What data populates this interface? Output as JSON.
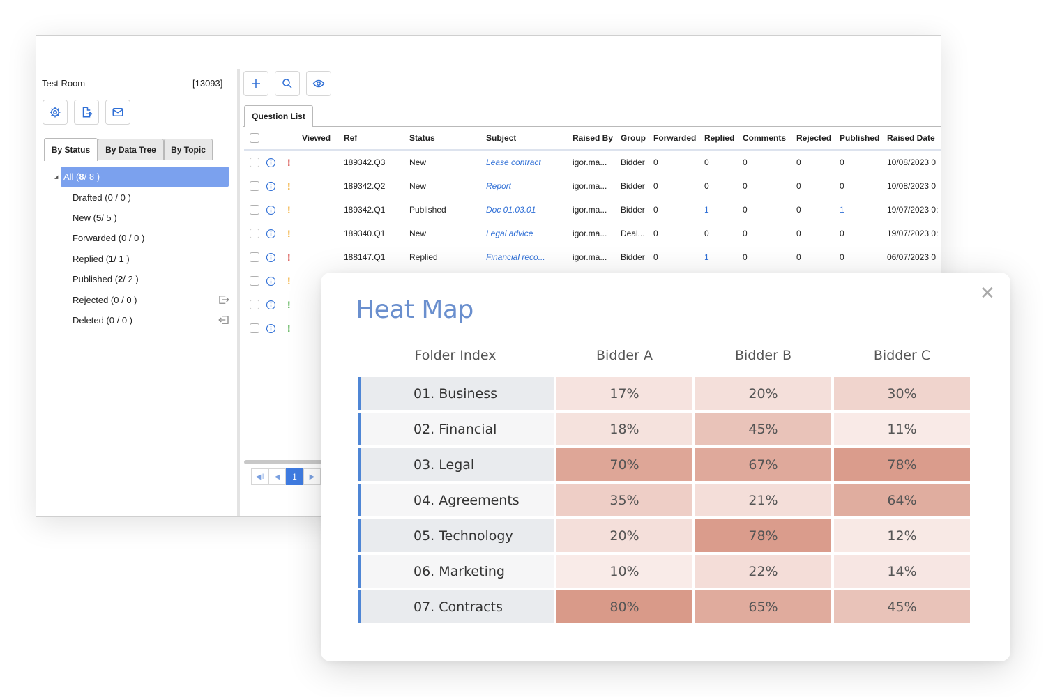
{
  "sidebar": {
    "room_title": "Test Room",
    "room_id": "[13093]",
    "buttons": [
      {
        "name": "settings",
        "icon": "gear-icon"
      },
      {
        "name": "export",
        "icon": "export-file-icon"
      },
      {
        "name": "mail",
        "icon": "envelope-icon"
      }
    ],
    "tabs": [
      "By Status",
      "By Data Tree",
      "By Topic"
    ],
    "active_tab": "By Status",
    "tree": [
      {
        "label": "All (",
        "bold": "8",
        "rest": " / 8 )",
        "selected": true
      },
      {
        "label": "Drafted (0 / 0 )",
        "bold": "",
        "rest": ""
      },
      {
        "label": "New (",
        "bold": "5",
        "rest": " / 5 )"
      },
      {
        "label": "Forwarded (0 / 0 )",
        "bold": "",
        "rest": ""
      },
      {
        "label": "Replied (",
        "bold": "1",
        "rest": " / 1 )"
      },
      {
        "label": "Published (",
        "bold": "2",
        "rest": " / 2 )"
      },
      {
        "label": "Rejected (0 / 0 )",
        "bold": "",
        "rest": "",
        "action": "move-out-icon"
      },
      {
        "label": "Deleted (0 / 0 )",
        "bold": "",
        "rest": "",
        "action": "move-in-icon"
      }
    ]
  },
  "toolbar": {
    "buttons": [
      {
        "name": "add",
        "icon": "plus-icon"
      },
      {
        "name": "search",
        "icon": "search-icon"
      },
      {
        "name": "view",
        "icon": "eye-icon"
      }
    ],
    "tab": "Question List"
  },
  "grid": {
    "columns": [
      "Viewed",
      "Ref",
      "Status",
      "Subject",
      "Raised By",
      "Group",
      "Forwarded",
      "Replied",
      "Comments",
      "Rejected",
      "Published",
      "Raised Date"
    ],
    "rows": [
      {
        "priority": "high",
        "ref": "189342.Q3",
        "status": "New",
        "subject": "Lease contract",
        "raised_by": "igor.ma...",
        "group": "Bidder",
        "forwarded": "0",
        "replied": "0",
        "comments": "0",
        "rejected": "0",
        "published": "0",
        "raised_date": "10/08/2023 0"
      },
      {
        "priority": "medium",
        "ref": "189342.Q2",
        "status": "New",
        "subject": "Report",
        "raised_by": "igor.ma...",
        "group": "Bidder",
        "forwarded": "0",
        "replied": "0",
        "comments": "0",
        "rejected": "0",
        "published": "0",
        "raised_date": "10/08/2023 0"
      },
      {
        "priority": "medium",
        "ref": "189342.Q1",
        "status": "Published",
        "subject": "Doc 01.03.01",
        "raised_by": "igor.ma...",
        "group": "Bidder",
        "forwarded": "0",
        "replied": "1",
        "comments": "0",
        "rejected": "0",
        "published": "1",
        "raised_date": "19/07/2023 0:"
      },
      {
        "priority": "medium",
        "ref": "189340.Q1",
        "status": "New",
        "subject": "Legal advice",
        "raised_by": "igor.ma...",
        "group": "Deal...",
        "forwarded": "0",
        "replied": "0",
        "comments": "0",
        "rejected": "0",
        "published": "0",
        "raised_date": "19/07/2023 0:"
      },
      {
        "priority": "high",
        "ref": "188147.Q1",
        "status": "Replied",
        "subject": "Financial reco...",
        "raised_by": "igor.ma...",
        "group": "Bidder",
        "forwarded": "0",
        "replied": "1",
        "comments": "0",
        "rejected": "0",
        "published": "0",
        "raised_date": "06/07/2023 0"
      },
      {
        "priority": "medium",
        "ref": "",
        "status": "",
        "subject": "",
        "raised_by": "",
        "group": "",
        "forwarded": "",
        "replied": "",
        "comments": "",
        "rejected": "",
        "published": "",
        "raised_date": ""
      },
      {
        "priority": "low",
        "ref": "",
        "status": "",
        "subject": "",
        "raised_by": "",
        "group": "",
        "forwarded": "",
        "replied": "",
        "comments": "",
        "rejected": "",
        "published": "",
        "raised_date": ""
      },
      {
        "priority": "low",
        "ref": "",
        "status": "",
        "subject": "",
        "raised_by": "",
        "group": "",
        "forwarded": "",
        "replied": "",
        "comments": "",
        "rejected": "",
        "published": "",
        "raised_date": ""
      }
    ],
    "pager": {
      "current_page": "1",
      "first": "first-page-icon",
      "prev": "prev-page-icon",
      "next": "next-page-icon"
    }
  },
  "colors": {
    "accent": "#3f7be0",
    "selected_tree": "#7ba1ee",
    "priority_high": "#d0302b",
    "priority_medium": "#f0a21a",
    "priority_low": "#3aa335",
    "heat_bar": "#4f86d5",
    "heat_low": "#f9ebe8",
    "heat_high": "#d99a89"
  },
  "heatmap": {
    "title": "Heat Map",
    "close_icon": "close-icon",
    "header": {
      "index": "Folder Index",
      "bidders": [
        "Bidder A",
        "Bidder B",
        "Bidder C"
      ]
    },
    "rows": [
      {
        "folder": "01. Business",
        "values": [
          "17%",
          "20%",
          "30%"
        ],
        "levels": [
          17,
          20,
          30
        ]
      },
      {
        "folder": "02. Financial",
        "values": [
          "18%",
          "45%",
          "11%"
        ],
        "levels": [
          18,
          45,
          11
        ]
      },
      {
        "folder": "03. Legal",
        "values": [
          "70%",
          "67%",
          "78%"
        ],
        "levels": [
          70,
          67,
          78
        ]
      },
      {
        "folder": "04. Agreements",
        "values": [
          "35%",
          "21%",
          "64%"
        ],
        "levels": [
          35,
          21,
          64
        ]
      },
      {
        "folder": "05. Technology",
        "values": [
          "20%",
          "78%",
          "12%"
        ],
        "levels": [
          20,
          78,
          12
        ]
      },
      {
        "folder": "06. Marketing",
        "values": [
          "10%",
          "22%",
          "14%"
        ],
        "levels": [
          10,
          22,
          14
        ]
      },
      {
        "folder": "07. Contracts",
        "values": [
          "80%",
          "65%",
          "45%"
        ],
        "levels": [
          80,
          65,
          45
        ]
      }
    ]
  }
}
